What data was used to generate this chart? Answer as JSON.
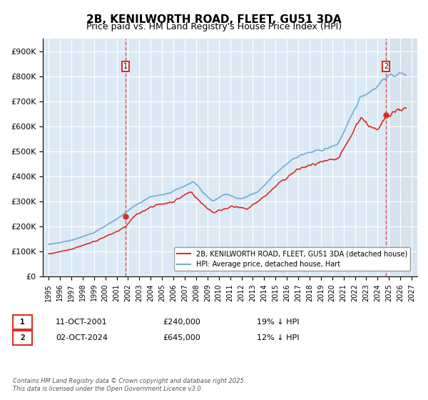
{
  "title": "2B, KENILWORTH ROAD, FLEET, GU51 3DA",
  "subtitle": "Price paid vs. HM Land Registry's House Price Index (HPI)",
  "hpi_label": "HPI: Average price, detached house, Hart",
  "property_label": "2B, KENILWORTH ROAD, FLEET, GU51 3DA (detached house)",
  "annotation1": {
    "num": "1",
    "date": "11-OCT-2001",
    "price": "£240,000",
    "note": "19% ↓ HPI",
    "x_year": 2001.78,
    "y_val": 240000
  },
  "annotation2": {
    "num": "2",
    "date": "02-OCT-2024",
    "price": "£645,000",
    "note": "12% ↓ HPI",
    "x_year": 2024.75,
    "y_val": 645000
  },
  "ylim": [
    0,
    950000
  ],
  "xlim_start": 1994.5,
  "xlim_end": 2027.5,
  "yticks": [
    0,
    100000,
    200000,
    300000,
    400000,
    500000,
    600000,
    700000,
    800000,
    900000
  ],
  "ytick_labels": [
    "£0",
    "£100K",
    "£200K",
    "£300K",
    "£400K",
    "£500K",
    "£600K",
    "£700K",
    "£800K",
    "£900K"
  ],
  "hpi_color": "#6baed6",
  "price_color": "#d73027",
  "bg_color": "#dce9f5",
  "plot_bg": "#dce9f5",
  "grid_color": "#ffffff",
  "copyright_text": "Contains HM Land Registry data © Crown copyright and database right 2025.\nThis data is licensed under the Open Government Licence v3.0.",
  "xtick_years": [
    1995,
    1996,
    1997,
    1998,
    1999,
    2000,
    2001,
    2002,
    2003,
    2004,
    2005,
    2006,
    2007,
    2008,
    2009,
    2010,
    2011,
    2012,
    2013,
    2014,
    2015,
    2016,
    2017,
    2018,
    2019,
    2020,
    2021,
    2022,
    2023,
    2024,
    2025,
    2026,
    2027
  ]
}
